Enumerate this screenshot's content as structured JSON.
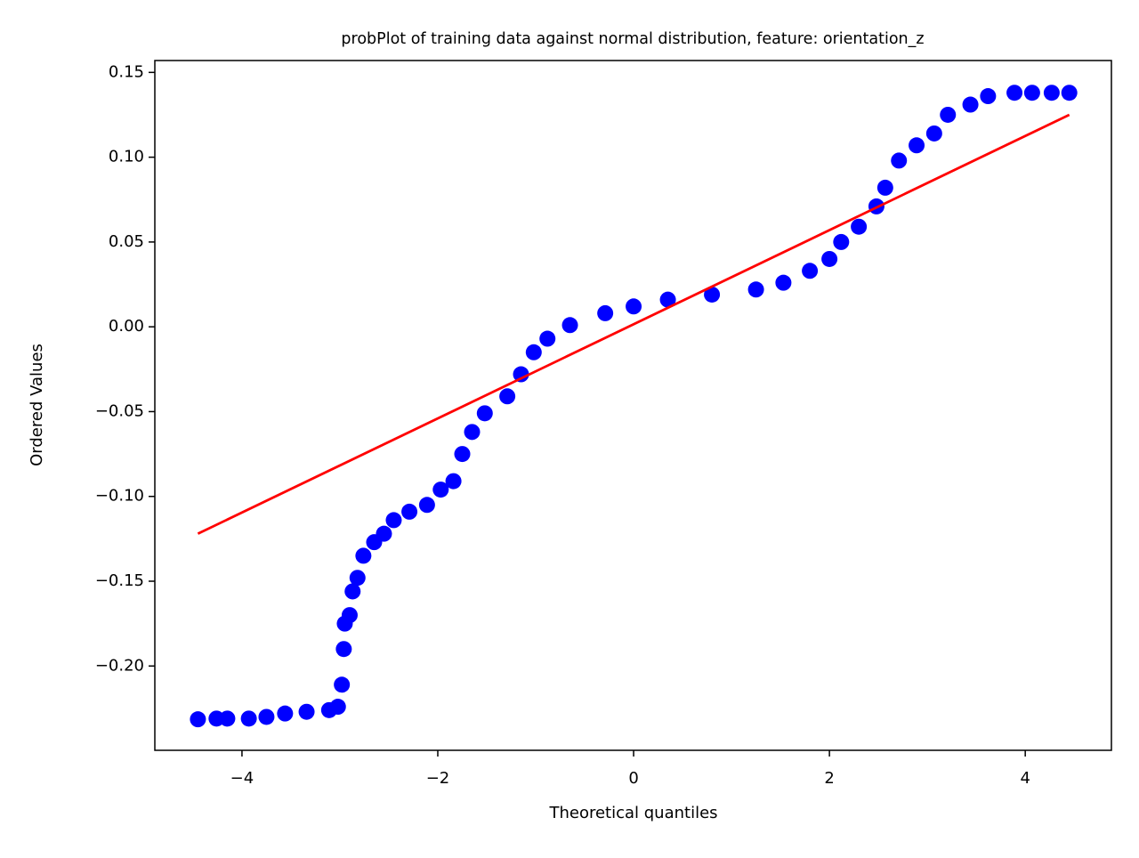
{
  "chart_data": {
    "type": "scatter",
    "title": "probPlot of training data against normal distribution, feature: orientation_z",
    "xlabel": "Theoretical quantiles",
    "ylabel": "Ordered Values",
    "xlim": [
      -4.89,
      4.88
    ],
    "ylim": [
      -0.2497,
      0.157
    ],
    "xticks": [
      {
        "value": -4,
        "label": "−4"
      },
      {
        "value": -2,
        "label": "−2"
      },
      0,
      2,
      4
    ],
    "yticks": [
      {
        "value": -0.2,
        "label": "−0.20"
      },
      {
        "value": -0.15,
        "label": "−0.15"
      },
      {
        "value": -0.1,
        "label": "−0.10"
      },
      {
        "value": -0.05,
        "label": "−0.05"
      },
      {
        "value": 0,
        "label": "0.00"
      },
      0.05,
      {
        "value": 0.1,
        "label": "0.10"
      },
      0.15
    ],
    "series": [
      {
        "type": "scatter",
        "color": "#0000ff",
        "x": [
          -4.45,
          -4.26,
          -4.15,
          -3.93,
          -3.75,
          -3.56,
          -3.34,
          -3.11,
          -3.02,
          -2.98,
          -2.96,
          -2.95,
          -2.9,
          -2.87,
          -2.82,
          -2.76,
          -2.65,
          -2.55,
          -2.45,
          -2.29,
          -2.11,
          -1.97,
          -1.84,
          -1.75,
          -1.65,
          -1.52,
          -1.29,
          -1.15,
          -1.02,
          -0.88,
          -0.65,
          -0.29,
          0,
          0.35,
          0.8,
          1.25,
          1.53,
          1.8,
          2.0,
          2.12,
          2.3,
          2.48,
          2.57,
          2.71,
          2.89,
          3.07,
          3.21,
          3.44,
          3.62,
          3.89,
          4.07,
          4.27,
          4.45
        ],
        "values": [
          -0.2314,
          -0.231,
          -0.231,
          -0.231,
          -0.23,
          -0.228,
          -0.227,
          -0.226,
          -0.224,
          -0.211,
          -0.19,
          -0.175,
          -0.17,
          -0.156,
          -0.148,
          -0.135,
          -0.127,
          -0.122,
          -0.114,
          -0.109,
          -0.105,
          -0.096,
          -0.091,
          -0.075,
          -0.062,
          -0.051,
          -0.041,
          -0.028,
          -0.015,
          -0.007,
          0.001,
          0.008,
          0.012,
          0.016,
          0.019,
          0.022,
          0.026,
          0.033,
          0.04,
          0.05,
          0.059,
          0.071,
          0.082,
          0.098,
          0.107,
          0.114,
          0.125,
          0.131,
          0.136,
          0.138,
          0.138,
          0.138,
          0.138
        ]
      },
      {
        "type": "line",
        "color": "#ff0000",
        "x": [
          -4.45,
          4.45
        ],
        "values": [
          -0.122,
          0.125
        ]
      }
    ]
  }
}
